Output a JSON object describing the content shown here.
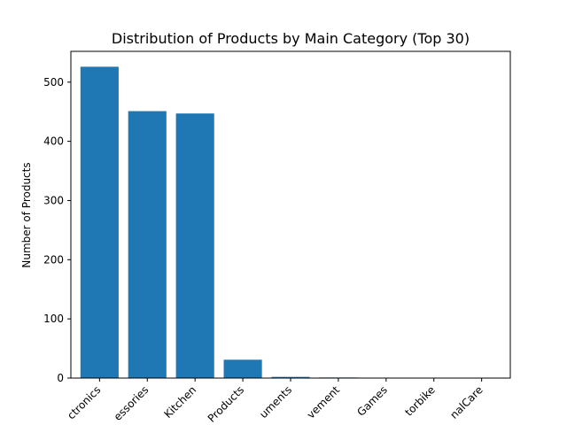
{
  "chart_data": {
    "type": "bar",
    "title": "Distribution of Products by Main Category (Top 30)",
    "xlabel": "",
    "ylabel": "Number of Products",
    "categories": [
      "ctronics",
      "essories",
      "Kitchen",
      "Products",
      "uments",
      "vement",
      "Games",
      "torbike",
      "nalCare"
    ],
    "values": [
      526,
      451,
      447,
      31,
      2,
      1,
      0,
      0,
      0
    ],
    "ylim": [
      0,
      552
    ],
    "yticks": [
      0,
      100,
      200,
      300,
      400,
      500
    ],
    "grid": false,
    "bar_color": "#1f77b4"
  }
}
